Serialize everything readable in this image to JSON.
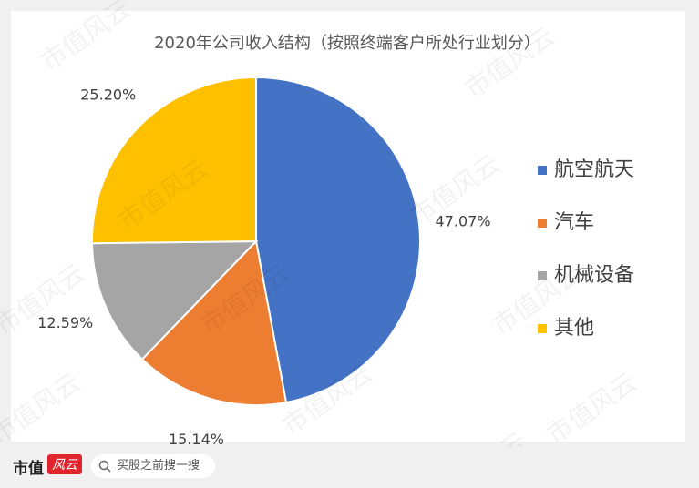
{
  "chart_data": {
    "type": "pie",
    "title": "2020年公司收入结构（按照终端客户所处行业划分）",
    "categories": [
      "航空航天",
      "汽车",
      "机械设备",
      "其他"
    ],
    "values": [
      47.07,
      15.14,
      12.59,
      25.2
    ],
    "value_labels": [
      "47.07%",
      "15.14%",
      "12.59%",
      "25.20%"
    ],
    "colors": [
      "#4472c4",
      "#ed7d31",
      "#a5a5a5",
      "#ffc000"
    ],
    "legend": "right"
  },
  "watermark": "市值风云",
  "footer": {
    "brand": "市值",
    "brand_badge": "风云",
    "search": "买股之前搜一搜"
  }
}
